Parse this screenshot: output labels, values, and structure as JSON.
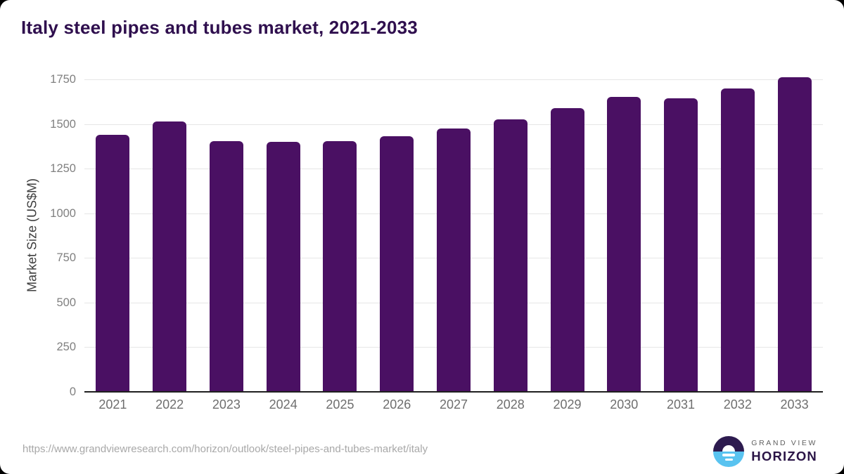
{
  "page": {
    "title": "Italy steel pipes and tubes market, 2021-2033"
  },
  "chart_data": {
    "type": "bar",
    "title": "Italy steel pipes and tubes market, 2021-2033",
    "categories": [
      "2021",
      "2022",
      "2023",
      "2024",
      "2025",
      "2026",
      "2027",
      "2028",
      "2029",
      "2030",
      "2031",
      "2032",
      "2033"
    ],
    "values": [
      1440,
      1515,
      1405,
      1400,
      1405,
      1430,
      1475,
      1525,
      1590,
      1650,
      1645,
      1700,
      1760
    ],
    "xlabel": "",
    "ylabel": "Market Size (US$M)",
    "ylim": [
      0,
      1750
    ],
    "yticks": [
      0,
      250,
      500,
      750,
      1000,
      1250,
      1500,
      1750
    ],
    "grid": "horizontal",
    "legend": "none",
    "bar_color": "#4a1063"
  },
  "footer": {
    "source_url": "https://www.grandviewresearch.com/horizon/outlook/steel-pipes-and-tubes-market/italy",
    "logo": {
      "line1": "GRAND VIEW",
      "line2": "HORIZON",
      "dark_color": "#2d1b4f",
      "blue_color": "#59c3f0"
    }
  },
  "colors": {
    "title_text": "#2f0f4e",
    "bar": "#4a1063",
    "gridline": "#e6e6e6",
    "axis_line": "#1f1f1f",
    "y_tick_text": "#808080",
    "x_tick_text": "#6e6e6e",
    "url_text": "#a8a8a8"
  }
}
